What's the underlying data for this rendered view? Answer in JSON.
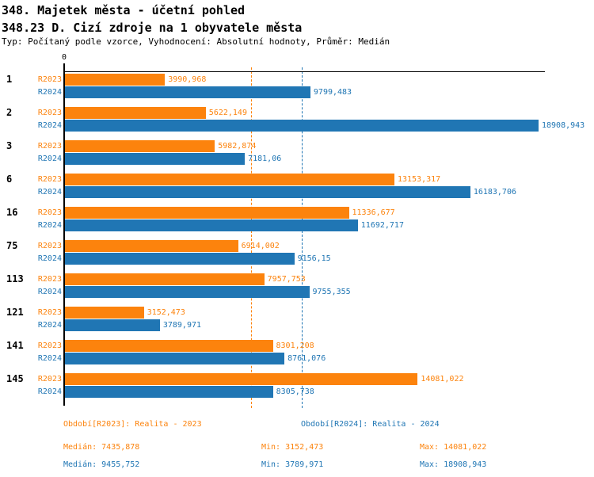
{
  "header": {
    "title1": "348. Majetek města - účetní pohled",
    "title2": "348.23 D. Cizí zdroje na 1 obyvatele města",
    "meta": "Typ: Počítaný podle vzorce, Vyhodnocení: Absolutní hodnoty, Průměr: Medián"
  },
  "colors": {
    "r2023": "#FC830D",
    "r2024": "#2076B4",
    "axis": "#000000"
  },
  "chart_data": {
    "type": "bar",
    "orientation": "horizontal",
    "grid": "median-lines-dashed",
    "zero_tick_label": "0",
    "xlim": [
      0,
      18908.943
    ],
    "categories": [
      "1",
      "2",
      "3",
      "6",
      "16",
      "75",
      "113",
      "121",
      "141",
      "145"
    ],
    "series": [
      {
        "name": "R2023",
        "color": "#FC830D",
        "values": [
          3990.968,
          5622.149,
          5982.874,
          13153.317,
          11336.677,
          6914.002,
          7957.753,
          3152.473,
          8301.208,
          14081.022
        ],
        "labels": [
          "3990,968",
          "5622,149",
          "5982,874",
          "13153,317",
          "11336,677",
          "6914,002",
          "7957,753",
          "3152,473",
          "8301,208",
          "14081,022"
        ]
      },
      {
        "name": "R2024",
        "color": "#2076B4",
        "values": [
          9799.483,
          18908.943,
          7181.06,
          16183.706,
          11692.717,
          9156.15,
          9755.355,
          3789.971,
          8761.076,
          8305.738
        ],
        "labels": [
          "9799,483",
          "18908,943",
          "7181,06",
          "16183,706",
          "11692,717",
          "9156,15",
          "9755,355",
          "3789,971",
          "8761,076",
          "8305,738"
        ]
      }
    ],
    "gridlines": [
      {
        "value": 7435.878,
        "color": "#FC830D",
        "meaning": "median R2023"
      },
      {
        "value": 9455.752,
        "color": "#2076B4",
        "meaning": "median R2024"
      }
    ]
  },
  "legend": {
    "r2023": "Období[R2023]: Realita - 2023",
    "r2024": "Období[R2024]: Realita - 2024"
  },
  "stats": {
    "r2023": {
      "median": "Medián: 7435,878",
      "min": "Min: 3152,473",
      "max": "Max: 14081,022"
    },
    "r2024": {
      "median": "Medián: 9455,752",
      "min": "Min: 3789,971",
      "max": "Max: 18908,943"
    }
  }
}
